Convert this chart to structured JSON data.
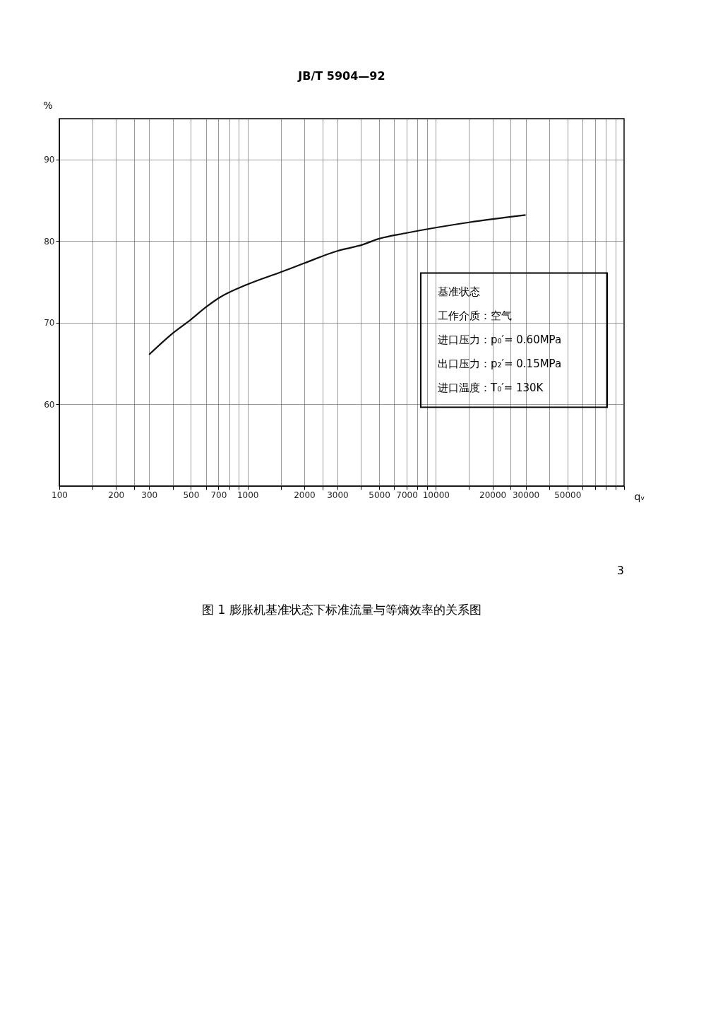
{
  "chart_data": {
    "type": "line",
    "title": "图 1  膨胀机基准状态下标准流量与等熵效率的关系图",
    "xlabel": "qᵥ",
    "ylabel": "%",
    "log": "x",
    "grid": true,
    "marker": "none",
    "line_style": "solid",
    "xlim": [
      100,
      100000
    ],
    "ylim": [
      50,
      95
    ],
    "xticks": [
      100,
      {
        "value": 150,
        "label": null
      },
      200,
      {
        "value": 250,
        "label": null
      },
      300,
      {
        "value": 400,
        "label": null
      },
      500,
      {
        "value": 600,
        "label": null
      },
      700,
      {
        "value": 800,
        "label": null
      },
      {
        "value": 900,
        "label": null
      },
      1000,
      {
        "value": 1500,
        "label": null
      },
      2000,
      {
        "value": 2500,
        "label": null
      },
      3000,
      {
        "value": 4000,
        "label": null
      },
      5000,
      {
        "value": 6000,
        "label": null
      },
      7000,
      {
        "value": 8000,
        "label": null
      },
      {
        "value": 9000,
        "label": null
      },
      10000,
      {
        "value": 15000,
        "label": null
      },
      20000,
      {
        "value": 25000,
        "label": null
      },
      30000,
      {
        "value": 40000,
        "label": null
      },
      50000,
      {
        "value": 60000,
        "label": null
      },
      {
        "value": 70000,
        "label": null
      },
      {
        "value": 80000,
        "label": null
      },
      {
        "value": 90000,
        "label": null
      },
      {
        "value": 100000,
        "label": null
      }
    ],
    "yticks": [
      60,
      70,
      80,
      90
    ],
    "x": [
      300,
      400,
      500,
      600,
      700,
      1000,
      1500,
      2000,
      3000,
      4000,
      5000,
      7000,
      15000,
      30000
    ],
    "series": [
      {
        "color": "#111111",
        "values": [
          66.1,
          68.7,
          70.4,
          71.9,
          73.0,
          74.7,
          76.2,
          77.3,
          78.8,
          79.5,
          80.3,
          81.0,
          82.3,
          83.2
        ]
      }
    ],
    "annotations": [
      "JB/T 5904—92",
      "基准状态",
      "工作介质：空气",
      "进口压力：p₀′= 0.60MPa",
      "出口压力：p₂′= 0.15MPa",
      "进口温度：T₀′= 130K",
      "3"
    ]
  }
}
